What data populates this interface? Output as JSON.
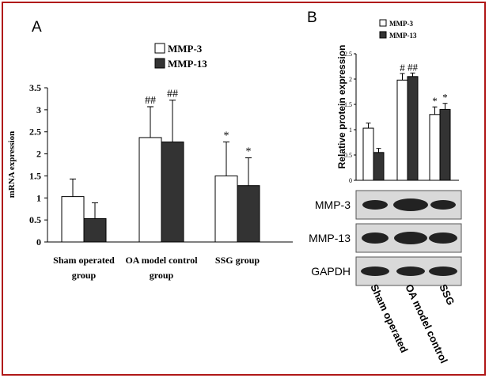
{
  "colors": {
    "frame": "#b01818",
    "series1": "#ffffff",
    "series2": "#333333",
    "axis": "#000000"
  },
  "chart_data": [
    {
      "panel": "A",
      "type": "bar",
      "categories": [
        [
          "Sham operated",
          "group"
        ],
        [
          "OA model control",
          "group"
        ],
        [
          "SSG group"
        ]
      ],
      "series": [
        {
          "name": "MMP-3",
          "values": [
            1.03,
            2.37,
            1.5
          ],
          "errors": [
            0.4,
            0.7,
            0.77
          ],
          "annotations": [
            "",
            "##",
            "*"
          ]
        },
        {
          "name": "MMP-13",
          "values": [
            0.53,
            2.27,
            1.28
          ],
          "errors": [
            0.36,
            0.95,
            0.63
          ],
          "annotations": [
            "",
            "##",
            "*"
          ]
        }
      ],
      "ylabel": "mRNA expression",
      "ylim": [
        0,
        3.5
      ],
      "yticks": [
        "0",
        "0.5",
        "1",
        "1.5",
        "2",
        "2.5",
        "3",
        "3.5"
      ],
      "grid": false,
      "legend": "top-center"
    },
    {
      "panel": "B",
      "type": "bar",
      "categories": [
        "Sham operated",
        "OA model control",
        "SSG"
      ],
      "series": [
        {
          "name": "MMP-3",
          "values": [
            1.03,
            1.98,
            1.3
          ],
          "errors": [
            0.1,
            0.13,
            0.15
          ],
          "annotations": [
            "",
            "#",
            "*"
          ]
        },
        {
          "name": "MMP-13",
          "values": [
            0.55,
            2.05,
            1.4
          ],
          "errors": [
            0.08,
            0.07,
            0.12
          ],
          "annotations": [
            "",
            "##",
            "*"
          ]
        }
      ],
      "ylabel": "Relative protein expression",
      "ylim": [
        0,
        2.5
      ],
      "yticks": [
        "0",
        "0.5",
        "1",
        "1.5",
        "2",
        "2.5"
      ],
      "grid": false,
      "legend": "top-left",
      "blot_rows": [
        "MMP-3",
        "MMP-13",
        "GAPDH"
      ]
    }
  ]
}
